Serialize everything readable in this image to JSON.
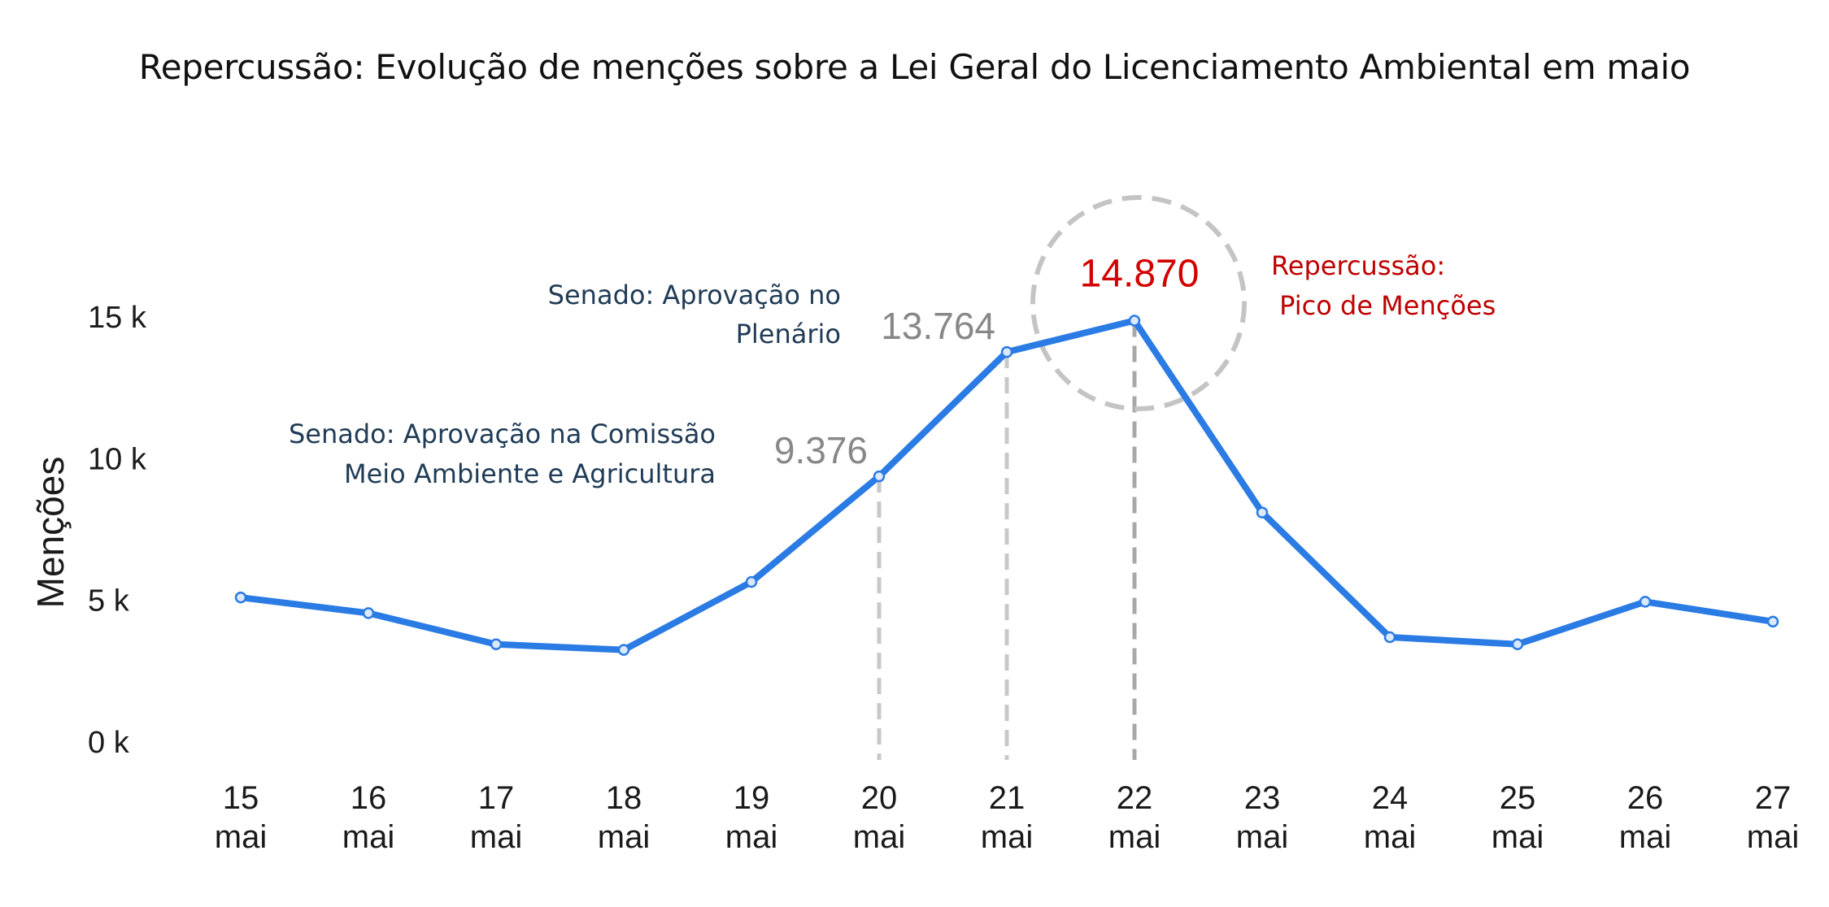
{
  "chart_data": {
    "type": "line",
    "title": "Repercussão: Evolução de menções sobre a Lei Geral do Licenciamento Ambiental em maio",
    "ylabel": "Menções",
    "xlabel": "",
    "categories": [
      [
        "15",
        "mai"
      ],
      [
        "16",
        "mai"
      ],
      [
        "17",
        "mai"
      ],
      [
        "18",
        "mai"
      ],
      [
        "19",
        "mai"
      ],
      [
        "20",
        "mai"
      ],
      [
        "21",
        "mai"
      ],
      [
        "22",
        "mai"
      ],
      [
        "23",
        "mai"
      ],
      [
        "24",
        "mai"
      ],
      [
        "25",
        "mai"
      ],
      [
        "26",
        "mai"
      ],
      [
        "27",
        "mai"
      ]
    ],
    "series": [
      {
        "values": [
          5100,
          4550,
          3450,
          3250,
          5650,
          9376,
          13764,
          14870,
          8100,
          3700,
          3450,
          4950,
          4250
        ]
      }
    ],
    "ylim": [
      0,
      15000
    ],
    "yticks": [
      {
        "value": 0,
        "label": "0 k"
      },
      {
        "value": 5000,
        "label": "5 k"
      },
      {
        "value": 10000,
        "label": "10 k"
      },
      {
        "value": 15000,
        "label": "15 k"
      }
    ],
    "grid": false,
    "line_color": "#2b7be4",
    "data_labels": [
      {
        "index": 5,
        "text": "9.376"
      },
      {
        "index": 6,
        "text": "13.764"
      },
      {
        "index": 7,
        "text": "14.870"
      }
    ],
    "annotations": {
      "comissao": [
        "Senado: Aprovação na Comissão",
        "Meio Ambiente e Agricultura"
      ],
      "plenario": [
        "Senado: Aprovação no",
        "Plenário"
      ],
      "pico": [
        "Repercussão:",
        " Pico de Menções"
      ]
    },
    "colors": {
      "event_text": "#1f3b56",
      "peak_text": "#c00000",
      "peak_value": "#d40000",
      "data_label": "#888888",
      "guide_line": "#c8c8c8"
    }
  }
}
